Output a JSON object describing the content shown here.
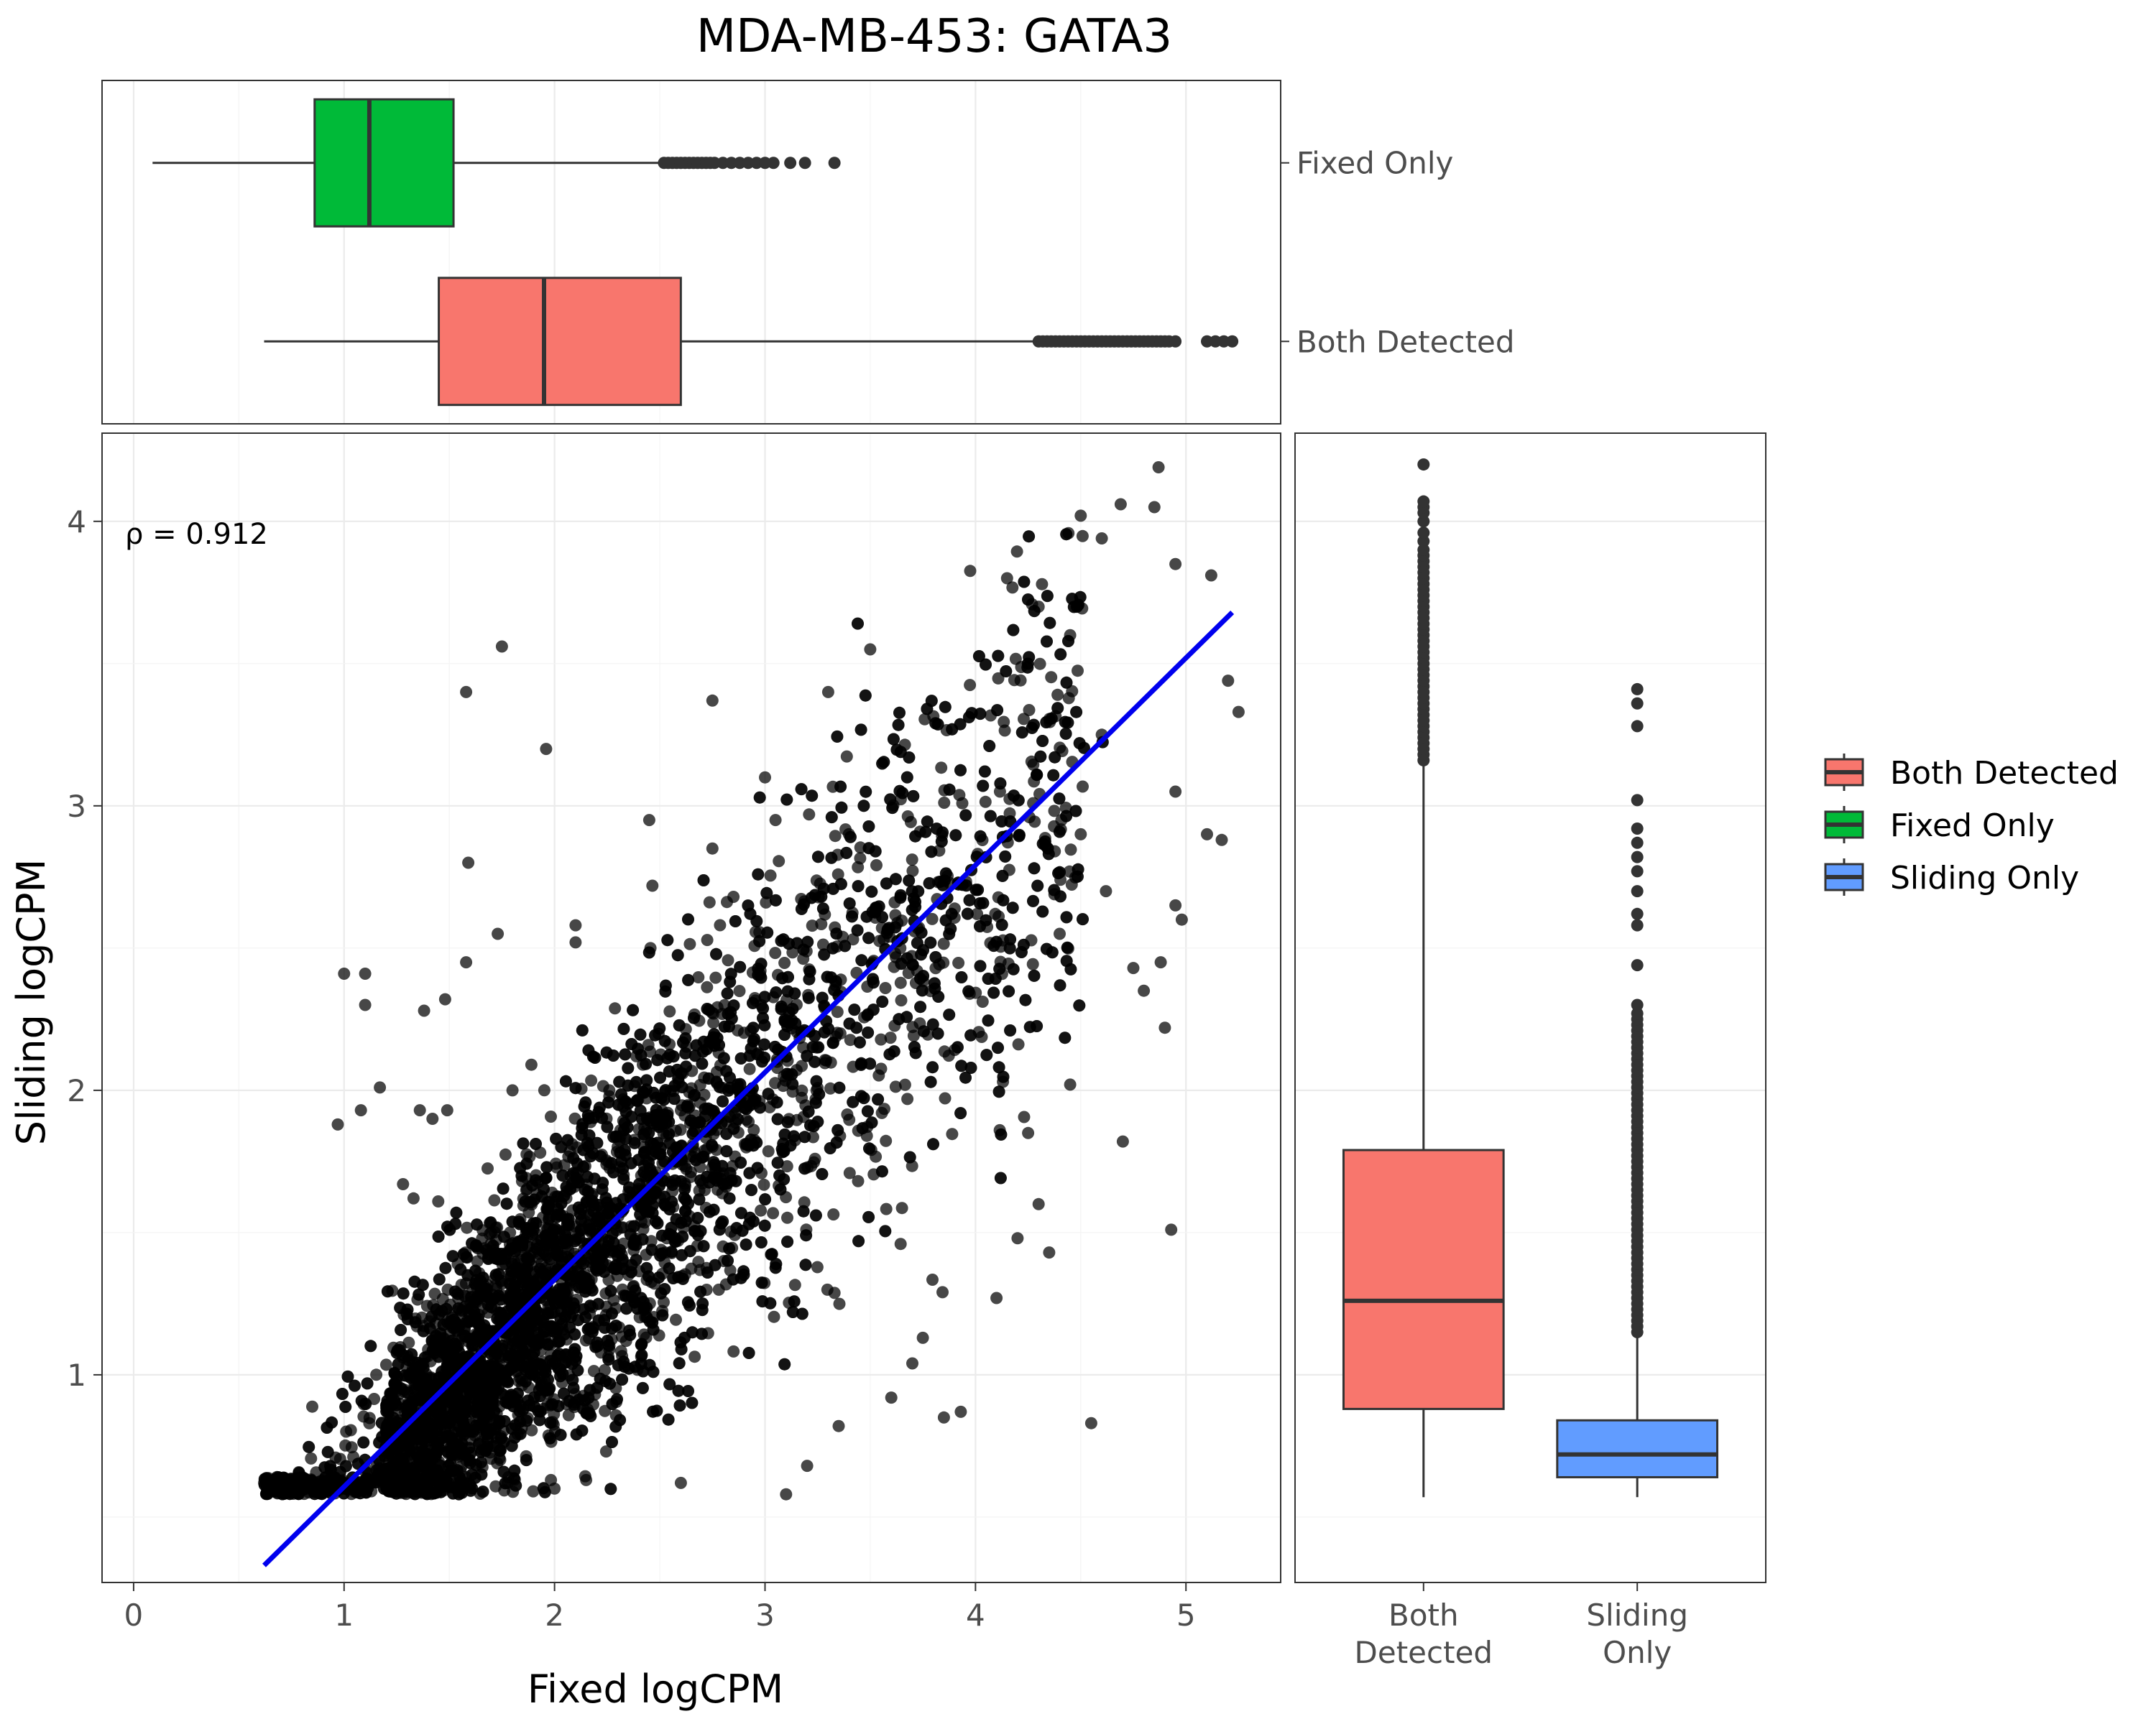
{
  "chart_data": [
    {
      "type": "scatter",
      "title": "MDA-MB-453: GATA3",
      "xlabel": "Fixed logCPM",
      "ylabel": "Sliding logCPM",
      "xlim": [
        -0.15,
        5.45
      ],
      "ylim": [
        0.27,
        4.31
      ],
      "x_ticks": [
        0,
        1,
        2,
        3,
        4,
        5
      ],
      "y_ticks": [
        1,
        2,
        3,
        4
      ],
      "grid": true,
      "annotation": "ρ = 0.912",
      "fit_line": {
        "x": [
          0.62,
          5.22
        ],
        "y": [
          0.33,
          3.68
        ],
        "color": "#0000ee"
      },
      "points": {
        "n_dense": 5600,
        "outliers": [
          [
            0.62,
            0.62
          ],
          [
            1.0,
            2.41
          ],
          [
            1.1,
            2.41
          ],
          [
            1.1,
            2.3
          ],
          [
            0.97,
            1.88
          ],
          [
            1.08,
            1.93
          ],
          [
            1.17,
            2.01
          ],
          [
            1.58,
            3.4
          ],
          [
            1.75,
            3.56
          ],
          [
            1.96,
            3.2
          ],
          [
            1.59,
            2.8
          ],
          [
            1.58,
            2.45
          ],
          [
            1.73,
            2.55
          ],
          [
            2.1,
            2.58
          ],
          [
            2.1,
            2.52
          ],
          [
            1.38,
            2.28
          ],
          [
            1.48,
            2.32
          ],
          [
            1.8,
            2.0
          ],
          [
            1.89,
            2.09
          ],
          [
            2.26,
            2.0
          ],
          [
            1.42,
            1.9
          ],
          [
            1.36,
            1.93
          ],
          [
            1.28,
            1.67
          ],
          [
            1.33,
            1.62
          ],
          [
            1.49,
            1.93
          ],
          [
            4.87,
            4.19
          ],
          [
            4.5,
            4.02
          ],
          [
            4.6,
            3.94
          ],
          [
            4.69,
            4.06
          ],
          [
            4.85,
            4.05
          ],
          [
            4.95,
            3.85
          ],
          [
            5.12,
            3.81
          ],
          [
            5.2,
            3.44
          ],
          [
            5.25,
            3.33
          ],
          [
            4.95,
            3.05
          ],
          [
            5.1,
            2.9
          ],
          [
            5.17,
            2.88
          ],
          [
            4.95,
            2.65
          ],
          [
            4.88,
            2.45
          ],
          [
            4.9,
            2.22
          ],
          [
            4.93,
            1.51
          ],
          [
            4.55,
            0.83
          ],
          [
            4.75,
            2.43
          ],
          [
            4.45,
            2.02
          ],
          [
            4.35,
            1.43
          ],
          [
            4.3,
            1.6
          ],
          [
            3.93,
            0.87
          ],
          [
            3.85,
            0.85
          ],
          [
            3.1,
            0.58
          ],
          [
            2.0,
            0.6
          ],
          [
            2.15,
            0.63
          ],
          [
            2.6,
            0.62
          ],
          [
            4.62,
            2.7
          ],
          [
            4.5,
            2.9
          ],
          [
            4.98,
            2.6
          ],
          [
            4.8,
            2.35
          ],
          [
            4.7,
            1.82
          ],
          [
            4.2,
            1.48
          ],
          [
            4.1,
            1.27
          ],
          [
            3.75,
            1.13
          ],
          [
            3.7,
            1.04
          ],
          [
            3.35,
            0.82
          ],
          [
            3.2,
            0.68
          ],
          [
            3.6,
            0.92
          ],
          [
            4.25,
            1.85
          ],
          [
            4.4,
            2.55
          ],
          [
            4.6,
            3.25
          ],
          [
            4.3,
            3.7
          ],
          [
            4.15,
            3.8
          ],
          [
            4.45,
            3.6
          ],
          [
            2.75,
            3.37
          ],
          [
            3.5,
            3.55
          ],
          [
            3.3,
            3.4
          ],
          [
            3.0,
            3.1
          ],
          [
            2.45,
            2.95
          ],
          [
            2.75,
            2.85
          ],
          [
            2.85,
            2.68
          ],
          [
            3.05,
            2.95
          ]
        ]
      }
    },
    {
      "type": "box",
      "orientation": "horizontal",
      "categories": [
        "Fixed Only",
        "Both Detected"
      ],
      "xlim": [
        -0.15,
        5.45
      ],
      "boxes": [
        {
          "name": "Fixed Only",
          "color": "#00ba38",
          "whisker_low": 0.09,
          "q1": 0.86,
          "median": 1.12,
          "q3": 1.52,
          "whisker_high": 2.5,
          "outliers": [
            2.52,
            2.54,
            2.56,
            2.58,
            2.6,
            2.62,
            2.64,
            2.66,
            2.68,
            2.7,
            2.72,
            2.74,
            2.76,
            2.8,
            2.84,
            2.88,
            2.92,
            2.96,
            3.0,
            3.04,
            3.12,
            3.19,
            3.33
          ]
        },
        {
          "name": "Both Detected",
          "color": "#f8766d",
          "whisker_low": 0.62,
          "q1": 1.45,
          "median": 1.95,
          "q3": 2.6,
          "whisker_high": 4.28,
          "outliers": [
            4.3,
            4.32,
            4.34,
            4.36,
            4.38,
            4.4,
            4.42,
            4.44,
            4.46,
            4.48,
            4.5,
            4.52,
            4.54,
            4.56,
            4.58,
            4.6,
            4.62,
            4.64,
            4.66,
            4.68,
            4.7,
            4.72,
            4.74,
            4.76,
            4.78,
            4.8,
            4.82,
            4.84,
            4.86,
            4.88,
            4.9,
            4.92,
            4.95,
            5.1,
            5.14,
            5.18,
            5.22
          ]
        }
      ]
    },
    {
      "type": "box",
      "orientation": "vertical",
      "categories": [
        "Both Detected",
        "Sliding Only"
      ],
      "ylim": [
        0.27,
        4.31
      ],
      "boxes": [
        {
          "name": "Both Detected",
          "color": "#f8766d",
          "whisker_low": 0.57,
          "q1": 0.88,
          "median": 1.26,
          "q3": 1.79,
          "whisker_high": 3.14,
          "outliers": [
            3.16,
            3.18,
            3.2,
            3.22,
            3.24,
            3.26,
            3.28,
            3.3,
            3.32,
            3.34,
            3.36,
            3.38,
            3.4,
            3.42,
            3.44,
            3.46,
            3.48,
            3.5,
            3.52,
            3.54,
            3.56,
            3.58,
            3.6,
            3.62,
            3.64,
            3.66,
            3.68,
            3.7,
            3.72,
            3.74,
            3.76,
            3.78,
            3.8,
            3.82,
            3.84,
            3.86,
            3.88,
            3.9,
            3.93,
            3.96,
            4.0,
            4.03,
            4.05,
            4.07,
            4.2
          ]
        },
        {
          "name": "Sliding Only",
          "color": "#619cff",
          "whisker_low": 0.57,
          "q1": 0.64,
          "median": 0.72,
          "q3": 0.84,
          "whisker_high": 1.13,
          "outliers": [
            1.15,
            1.17,
            1.19,
            1.21,
            1.23,
            1.25,
            1.27,
            1.29,
            1.31,
            1.33,
            1.35,
            1.37,
            1.39,
            1.41,
            1.43,
            1.45,
            1.47,
            1.49,
            1.51,
            1.53,
            1.55,
            1.57,
            1.59,
            1.61,
            1.63,
            1.65,
            1.67,
            1.69,
            1.71,
            1.73,
            1.75,
            1.77,
            1.79,
            1.81,
            1.83,
            1.85,
            1.87,
            1.89,
            1.91,
            1.93,
            1.95,
            1.97,
            1.99,
            2.01,
            2.03,
            2.05,
            2.07,
            2.09,
            2.11,
            2.13,
            2.15,
            2.17,
            2.19,
            2.21,
            2.23,
            2.25,
            2.27,
            2.3,
            2.44,
            2.58,
            2.62,
            2.7,
            2.77,
            2.82,
            2.87,
            2.92,
            3.02,
            3.28,
            3.36,
            3.41
          ]
        }
      ]
    }
  ],
  "legend": {
    "placement": "right",
    "items": [
      {
        "label": "Both Detected",
        "color": "#f8766d"
      },
      {
        "label": "Fixed Only",
        "color": "#00ba38"
      },
      {
        "label": "Sliding Only",
        "color": "#619cff"
      }
    ]
  },
  "right_box_x_labels": [
    [
      "Both",
      "Detected"
    ],
    [
      "Sliding",
      "Only"
    ]
  ]
}
